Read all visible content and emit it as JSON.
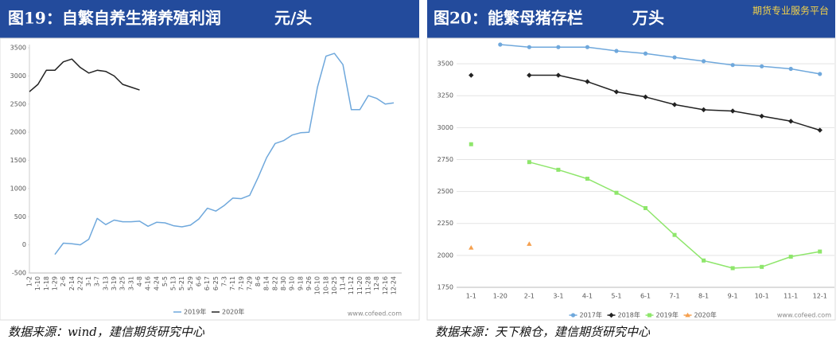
{
  "chart_data": [
    {
      "type": "line",
      "title": "图19：自繁自养生猪养殖利润",
      "unit": "元/头",
      "source": "数据来源：wind，建信期货研究中心",
      "watermark": "www.cofeed.com",
      "categories": [
        "1-2",
        "1-10",
        "1-18",
        "1-29",
        "2-6",
        "2-14",
        "2-22",
        "3-1",
        "3-7",
        "3-13",
        "3-19",
        "3-25",
        "3-31",
        "4-8",
        "4-16",
        "4-24",
        "5-5",
        "5-13",
        "5-21",
        "5-29",
        "6-6",
        "6-17",
        "6-25",
        "7-3",
        "7-11",
        "7-19",
        "7-29",
        "8-6",
        "8-14",
        "8-22",
        "8-30",
        "9-10",
        "9-18",
        "9-26",
        "10-10",
        "10-18",
        "10-25",
        "11-4",
        "11-12",
        "11-20",
        "11-28",
        "12-8",
        "12-16",
        "12-24"
      ],
      "series": [
        {
          "name": "2019年",
          "color": "#6fa8dc",
          "values": [
            null,
            null,
            null,
            -170,
            30,
            20,
            0,
            100,
            470,
            360,
            440,
            410,
            410,
            420,
            330,
            400,
            390,
            340,
            320,
            350,
            460,
            650,
            600,
            700,
            830,
            820,
            880,
            1200,
            1550,
            1800,
            1850,
            1950,
            1990,
            2000,
            2800,
            3350,
            3400,
            3200,
            2400,
            2400,
            2650,
            2600,
            2500,
            2520
          ]
        },
        {
          "name": "2020年",
          "color": "#222222",
          "values": [
            2720,
            2850,
            3100,
            3100,
            3250,
            3300,
            3150,
            3050,
            3100,
            3080,
            3000,
            2850,
            2800,
            2750,
            null,
            null,
            null,
            null,
            null,
            null,
            null,
            null,
            null,
            null,
            null,
            null,
            null,
            null,
            null,
            null,
            null,
            null,
            null,
            null,
            null,
            null,
            null,
            null,
            null,
            null,
            null,
            null,
            null,
            null
          ]
        }
      ],
      "ylim": [
        -500,
        3500
      ],
      "yticks": [
        -500,
        0,
        500,
        1000,
        1500,
        2000,
        2500,
        3000,
        3500
      ],
      "grid": false,
      "legend": "bottom"
    },
    {
      "type": "line",
      "title": "图20：能繁母猪存栏",
      "unit": "万头",
      "brand": "期货专业服务平台",
      "source": "数据来源：天下粮仓，建信期货研究中心",
      "watermark": "www.cofeed.com",
      "categories": [
        "1-1",
        "1-20",
        "2-1",
        "3-1",
        "4-1",
        "5-1",
        "6-1",
        "7-1",
        "8-1",
        "9-1",
        "10-1",
        "11-1",
        "12-1"
      ],
      "series": [
        {
          "name": "2017年",
          "color": "#6fa8dc",
          "marker": "circle",
          "values": [
            null,
            3650,
            3630,
            3630,
            3630,
            3600,
            3580,
            3550,
            3520,
            3490,
            3480,
            3460,
            3420
          ]
        },
        {
          "name": "2018年",
          "color": "#222222",
          "marker": "diamond",
          "values": [
            3410,
            null,
            3410,
            3410,
            3360,
            3280,
            3240,
            3180,
            3140,
            3130,
            3090,
            3050,
            2980
          ]
        },
        {
          "name": "2019年",
          "color": "#8ee66b",
          "marker": "square",
          "values": [
            2870,
            null,
            2730,
            2670,
            2600,
            2490,
            2370,
            2160,
            1960,
            1900,
            1910,
            1990,
            2030
          ]
        },
        {
          "name": "2020年",
          "color": "#f5a04f",
          "marker": "triangle",
          "values": [
            2060,
            null,
            2090,
            null,
            null,
            null,
            null,
            null,
            null,
            null,
            null,
            null,
            null
          ]
        }
      ],
      "ylim": [
        1750,
        3650
      ],
      "yticks": [
        1750,
        2000,
        2250,
        2500,
        2750,
        3000,
        3250,
        3500
      ],
      "grid": true,
      "legend": "bottom"
    }
  ]
}
